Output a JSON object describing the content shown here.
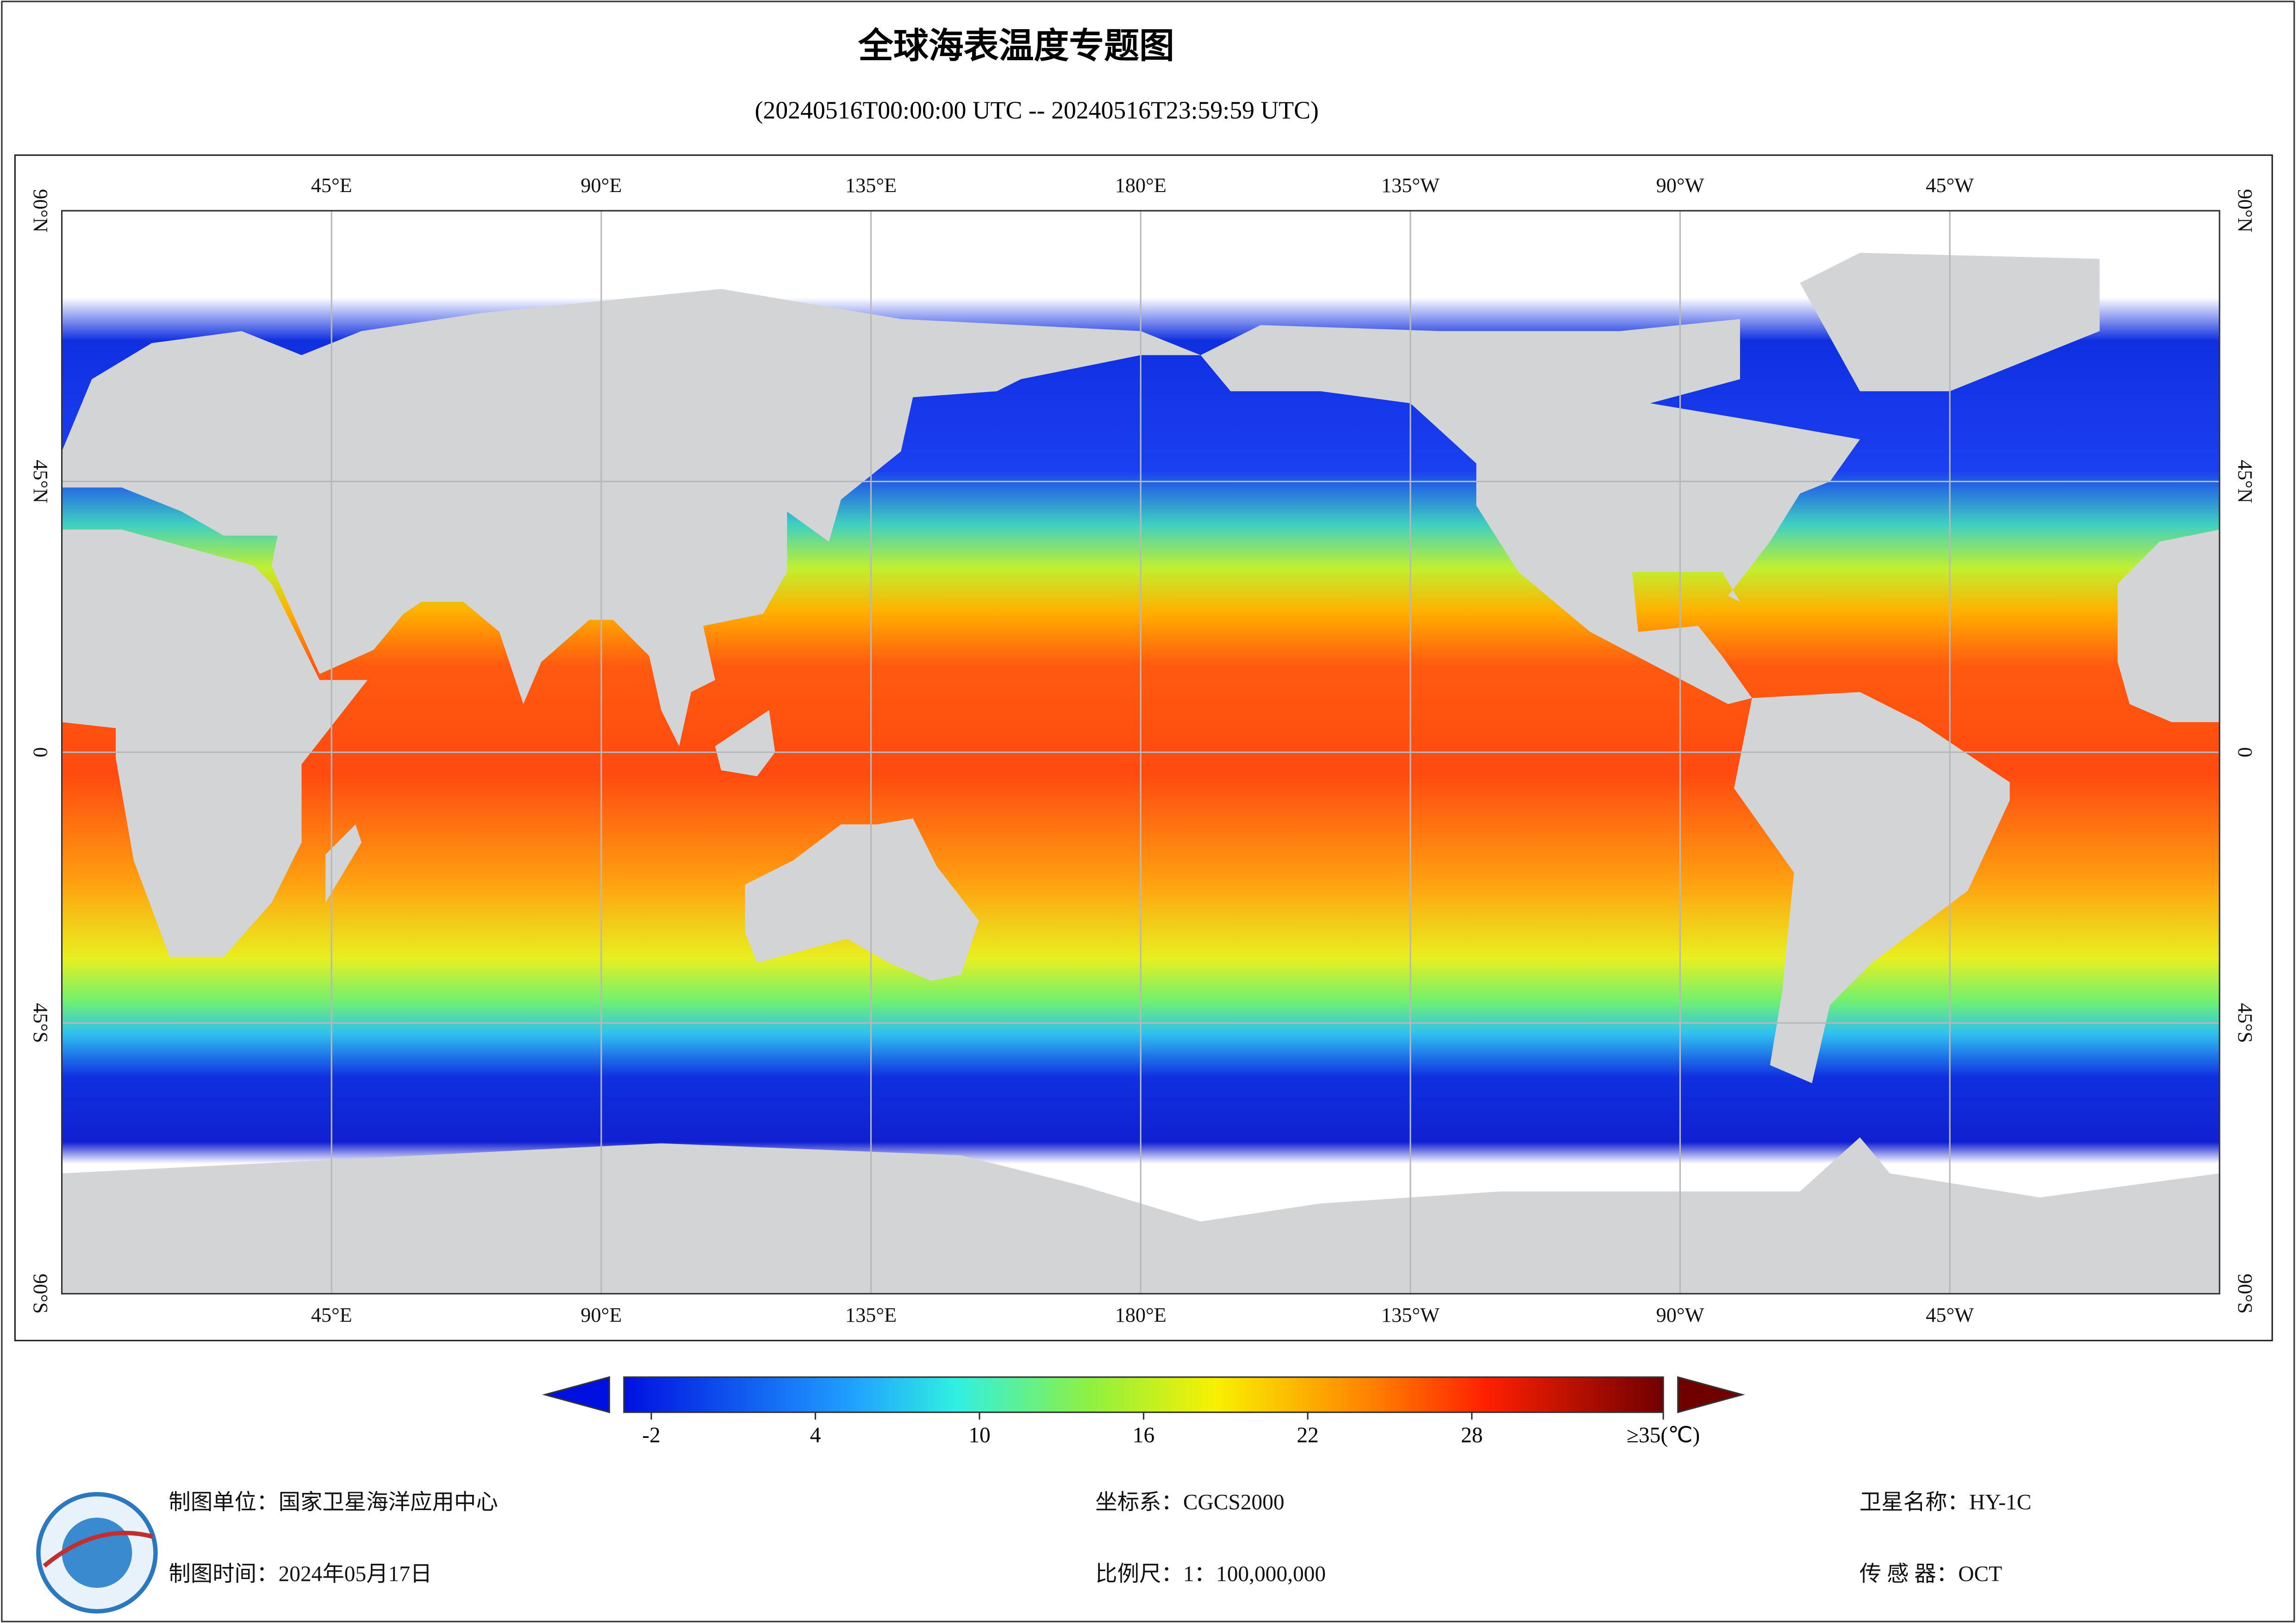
{
  "header": {
    "title": "全球海表温度专题图",
    "subtitle": "(20240516T00:00:00 UTC -- 20240516T23:59:59 UTC)"
  },
  "map": {
    "lonlim": [
      0,
      360
    ],
    "latlim": [
      -90,
      90
    ],
    "lon_ticks": [
      {
        "value": 45,
        "label": "45°E"
      },
      {
        "value": 90,
        "label": "90°E"
      },
      {
        "value": 135,
        "label": "135°E"
      },
      {
        "value": 180,
        "label": "180°E"
      },
      {
        "value": 225,
        "label": "135°W"
      },
      {
        "value": 270,
        "label": "90°W"
      },
      {
        "value": 315,
        "label": "45°W"
      }
    ],
    "lat_ticks": [
      {
        "value": 90,
        "label": "90°N"
      },
      {
        "value": 45,
        "label": "45°N"
      },
      0,
      {
        "value": -45,
        "label": "45°S"
      },
      {
        "value": -90,
        "label": "90°S"
      }
    ]
  },
  "colorbar": {
    "lim": [
      -3,
      35
    ],
    "ticks": [
      -2,
      4,
      10,
      16,
      22,
      28,
      {
        "value": 35,
        "label": "≥35(℃)"
      }
    ]
  },
  "footer": {
    "unit": "制图单位：国家卫星海洋应用中心",
    "time": "制图时间：2024年05月17日",
    "crs": "坐标系：CGCS2000",
    "scale": "比例尺：1：100,000,000",
    "satellite": "卫星名称：HY-1C",
    "sensor": "传 感 器：OCT"
  }
}
